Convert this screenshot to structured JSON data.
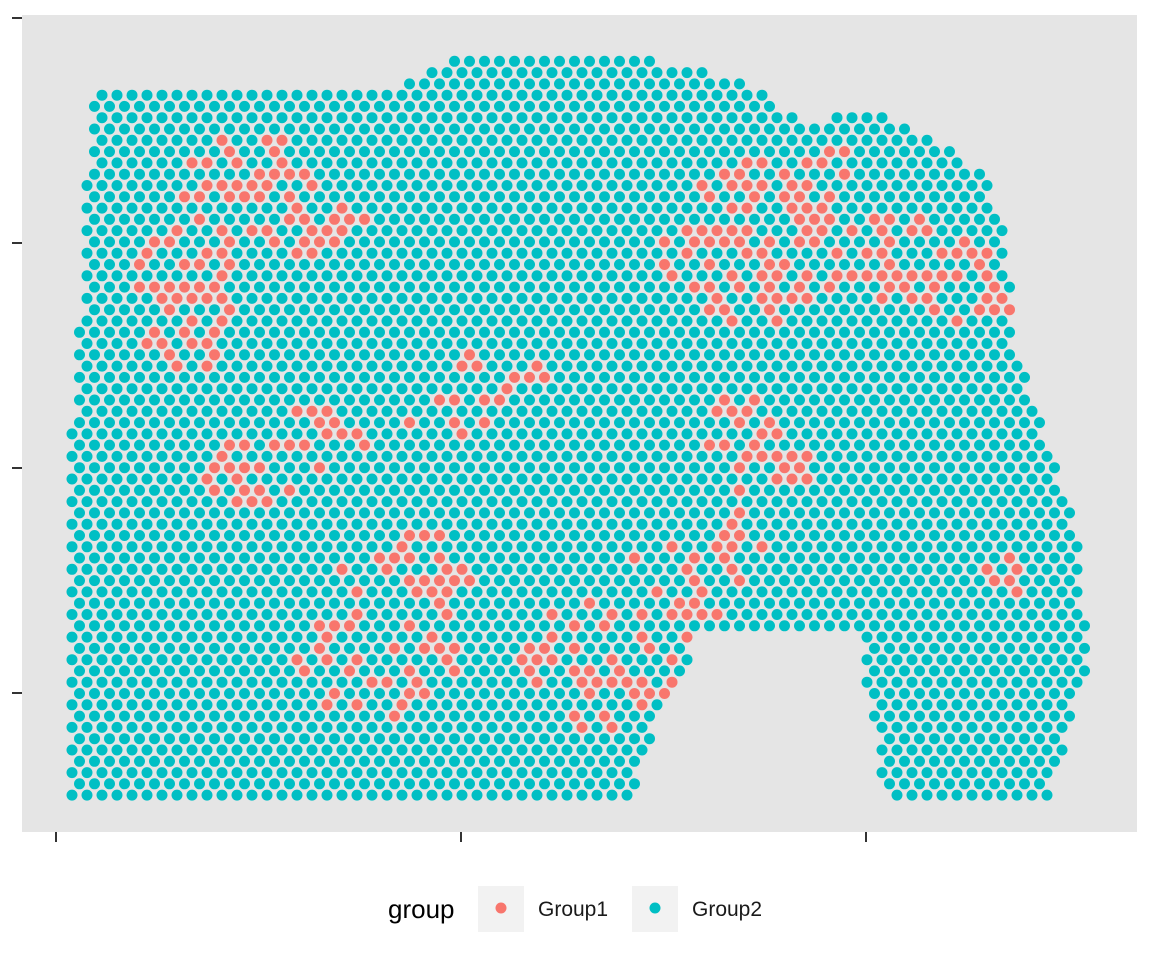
{
  "chart_data": {
    "type": "scatter",
    "title": "",
    "xlabel": "",
    "ylabel": "",
    "panel_background": "#E5E5E5",
    "grid": false,
    "axis_tick_labels_shown": false,
    "x_ticks": 3,
    "y_ticks": 4,
    "legend": {
      "title": "group",
      "position": "bottom",
      "entries": [
        {
          "label": "Group1",
          "color": "#F8766D"
        },
        {
          "label": "Group2",
          "color": "#00BFC4"
        }
      ]
    },
    "spot_layout": "hexagonal array of tissue spots, each assigned to Group1 or Group2",
    "series": [
      {
        "name": "Group1",
        "color": "#F8766D",
        "regions": [
          {
            "desc": "upper-left patch",
            "ellipses": [
              [
                0.17,
                0.18,
                0.07,
                0.08
              ],
              [
                0.11,
                0.33,
                0.05,
                0.12
              ],
              [
                0.23,
                0.23,
                0.06,
                0.05
              ]
            ]
          },
          {
            "desc": "upper-right patch",
            "ellipses": [
              [
                0.67,
                0.26,
                0.09,
                0.11
              ],
              [
                0.82,
                0.28,
                0.07,
                0.06
              ],
              [
                0.89,
                0.32,
                0.05,
                0.05
              ],
              [
                0.75,
                0.17,
                0.04,
                0.04
              ]
            ]
          },
          {
            "desc": "centre patch",
            "ellipses": [
              [
                0.37,
                0.49,
                0.04,
                0.03
              ],
              [
                0.42,
                0.44,
                0.05,
                0.04
              ]
            ]
          },
          {
            "desc": "right-centre patch",
            "ellipses": [
              [
                0.66,
                0.52,
                0.04,
                0.07
              ],
              [
                0.71,
                0.56,
                0.03,
                0.03
              ]
            ]
          },
          {
            "desc": "left-centre patch",
            "ellipses": [
              [
                0.18,
                0.57,
                0.05,
                0.05
              ],
              [
                0.24,
                0.52,
                0.05,
                0.04
              ]
            ]
          },
          {
            "desc": "lower-centre patch",
            "ellipses": [
              [
                0.3,
                0.8,
                0.08,
                0.12
              ],
              [
                0.36,
                0.69,
                0.05,
                0.06
              ],
              [
                0.52,
                0.82,
                0.08,
                0.09
              ],
              [
                0.6,
                0.72,
                0.06,
                0.07
              ],
              [
                0.66,
                0.65,
                0.04,
                0.04
              ]
            ]
          },
          {
            "desc": "far-right small patch",
            "ellipses": [
              [
                0.92,
                0.7,
                0.02,
                0.03
              ]
            ]
          }
        ]
      },
      {
        "name": "Group2",
        "color": "#00BFC4",
        "regions": [
          {
            "desc": "all remaining tissue spots"
          }
        ]
      }
    ]
  }
}
